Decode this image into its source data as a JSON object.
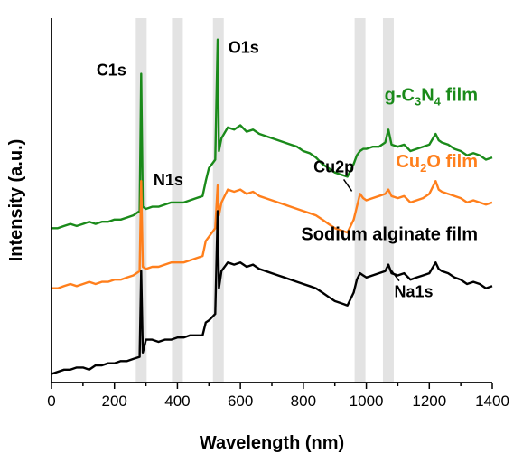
{
  "chart_data": {
    "type": "line",
    "xlabel": "Wavelength (nm)",
    "ylabel": "Intensity (a.u.)",
    "xlim": [
      0,
      1400
    ],
    "xticks": [
      0,
      200,
      400,
      600,
      800,
      1000,
      1200,
      1400
    ],
    "x": [
      0,
      20,
      40,
      60,
      80,
      100,
      120,
      140,
      160,
      180,
      200,
      220,
      240,
      260,
      280,
      285,
      290,
      300,
      320,
      340,
      360,
      380,
      400,
      420,
      440,
      460,
      480,
      490,
      500,
      520,
      528,
      532,
      540,
      560,
      580,
      600,
      620,
      640,
      660,
      680,
      700,
      720,
      740,
      760,
      780,
      800,
      820,
      840,
      860,
      880,
      900,
      920,
      940,
      960,
      970,
      980,
      990,
      1000,
      1020,
      1040,
      1060,
      1070,
      1080,
      1100,
      1120,
      1140,
      1160,
      1180,
      1200,
      1220,
      1230,
      1240,
      1260,
      1280,
      1300,
      1320,
      1340,
      1360,
      1380,
      1400
    ],
    "series": [
      {
        "name": "g-C3N4 film",
        "label": [
          "g-C",
          "3",
          "N",
          "4",
          " film"
        ],
        "color": "#1a8a1a",
        "values": [
          2.0,
          2.0,
          2.05,
          2.1,
          2.05,
          2.1,
          2.15,
          2.1,
          2.15,
          2.15,
          2.2,
          2.2,
          2.25,
          2.3,
          2.4,
          5.6,
          2.5,
          2.45,
          2.5,
          2.5,
          2.55,
          2.6,
          2.6,
          2.6,
          2.65,
          2.7,
          2.75,
          3.1,
          3.4,
          3.6,
          6.4,
          3.8,
          4.1,
          4.35,
          4.3,
          4.4,
          4.25,
          4.3,
          4.2,
          4.15,
          4.1,
          4.05,
          4.0,
          3.95,
          3.9,
          3.8,
          3.75,
          3.65,
          3.5,
          3.4,
          3.3,
          3.25,
          3.2,
          3.5,
          3.7,
          3.8,
          3.85,
          3.85,
          3.9,
          3.9,
          4.0,
          4.3,
          3.95,
          3.9,
          3.95,
          3.8,
          3.85,
          3.9,
          3.95,
          4.2,
          4.05,
          4.0,
          3.95,
          3.85,
          3.8,
          3.7,
          3.75,
          3.7,
          3.6,
          3.65
        ]
      },
      {
        "name": "Cu2O film",
        "label": [
          "Cu",
          "2",
          "O film"
        ],
        "color": "#ff7f1c",
        "values": [
          0.6,
          0.6,
          0.65,
          0.7,
          0.65,
          0.7,
          0.75,
          0.7,
          0.75,
          0.75,
          0.8,
          0.8,
          0.85,
          0.9,
          1.0,
          3.1,
          1.1,
          1.05,
          1.1,
          1.1,
          1.15,
          1.2,
          1.2,
          1.2,
          1.25,
          1.3,
          1.35,
          1.7,
          1.8,
          2.0,
          3.0,
          2.3,
          2.6,
          2.9,
          2.85,
          2.9,
          2.8,
          2.85,
          2.75,
          2.7,
          2.65,
          2.6,
          2.55,
          2.5,
          2.45,
          2.4,
          2.35,
          2.3,
          2.2,
          2.1,
          2.0,
          1.95,
          1.9,
          2.2,
          2.5,
          2.8,
          2.7,
          2.65,
          2.7,
          2.75,
          2.8,
          2.9,
          2.75,
          2.7,
          2.75,
          2.6,
          2.65,
          2.7,
          2.8,
          3.1,
          2.9,
          2.85,
          2.8,
          2.75,
          2.7,
          2.6,
          2.65,
          2.6,
          2.55,
          2.6
        ]
      },
      {
        "name": "Sodium alginate film",
        "label": [
          "Sodium alginate film"
        ],
        "color": "#000000",
        "values": [
          -1.4,
          -1.35,
          -1.3,
          -1.3,
          -1.25,
          -1.25,
          -1.3,
          -1.2,
          -1.2,
          -1.15,
          -1.15,
          -1.1,
          -1.1,
          -1.05,
          -1.0,
          1.0,
          -0.9,
          -0.6,
          -0.6,
          -0.65,
          -0.6,
          -0.6,
          -0.55,
          -0.55,
          -0.5,
          -0.5,
          -0.5,
          -0.2,
          -0.15,
          0.0,
          2.4,
          0.6,
          1.0,
          1.2,
          1.15,
          1.2,
          1.1,
          1.15,
          1.05,
          1.0,
          0.95,
          0.9,
          0.85,
          0.8,
          0.75,
          0.7,
          0.65,
          0.6,
          0.5,
          0.4,
          0.3,
          0.25,
          0.2,
          0.5,
          0.8,
          0.95,
          0.9,
          0.85,
          0.9,
          0.95,
          1.0,
          1.15,
          0.95,
          0.9,
          0.95,
          0.8,
          0.85,
          0.9,
          0.95,
          1.2,
          1.05,
          1.0,
          0.95,
          0.85,
          0.8,
          0.7,
          0.75,
          0.7,
          0.6,
          0.65
        ]
      }
    ],
    "highlight_bands": [
      285,
      400,
      530,
      980,
      1070
    ],
    "annotations": [
      {
        "text": "C1s",
        "x": 285
      },
      {
        "text": "N1s",
        "x": 400
      },
      {
        "text": "O1s",
        "x": 530
      },
      {
        "text": "Cu2p",
        "x": 980
      },
      {
        "text": "Na1s",
        "x": 1070
      }
    ],
    "grid": false,
    "legend": "inline labels"
  }
}
